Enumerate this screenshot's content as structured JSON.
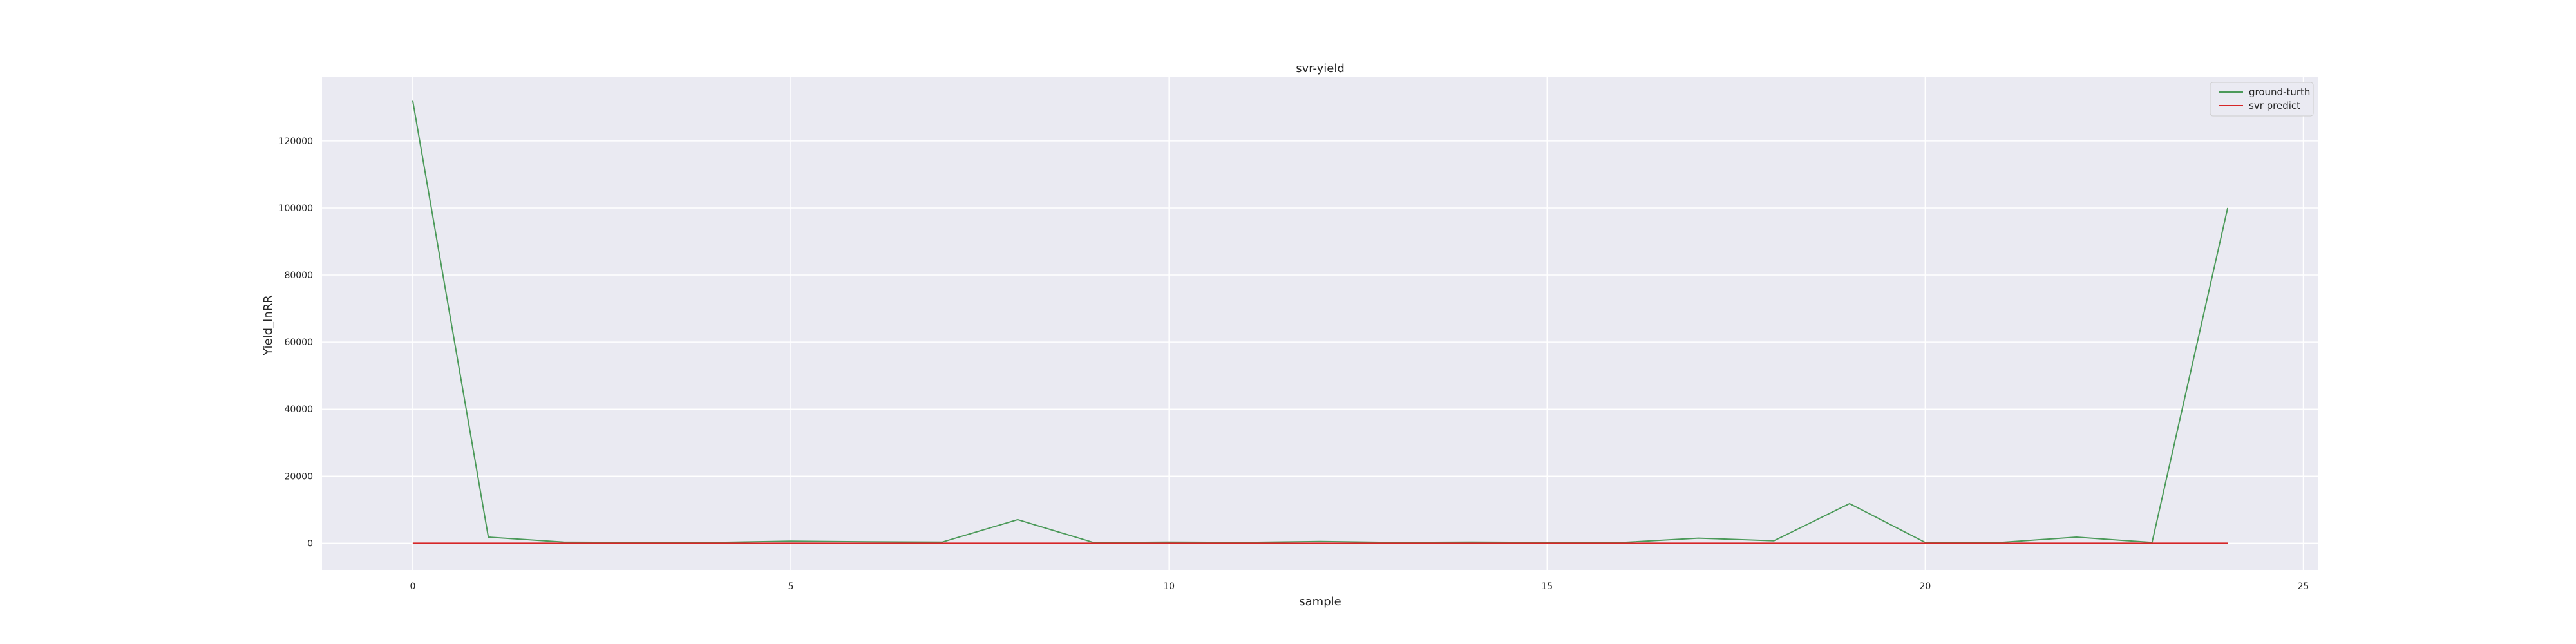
{
  "chart_data": {
    "type": "line",
    "title": "svr-yield",
    "xlabel": "sample",
    "ylabel": "Yield_InRR",
    "xlim": [
      -1.2,
      25.2
    ],
    "ylim": [
      -8000,
      139000
    ],
    "xticks": [
      0,
      5,
      10,
      15,
      20,
      25
    ],
    "yticks": [
      0,
      20000,
      40000,
      60000,
      80000,
      100000,
      120000
    ],
    "grid": true,
    "legend_position": "top-right",
    "x": [
      0,
      1,
      2,
      3,
      4,
      5,
      6,
      7,
      8,
      9,
      10,
      11,
      12,
      13,
      14,
      15,
      16,
      17,
      18,
      19,
      20,
      21,
      22,
      23,
      24
    ],
    "series": [
      {
        "name": "ground-turth",
        "color": "#4c9a5a",
        "values": [
          132000,
          1800,
          300,
          200,
          200,
          600,
          400,
          300,
          7000,
          200,
          300,
          200,
          500,
          200,
          300,
          200,
          200,
          1500,
          700,
          11800,
          200,
          200,
          1800,
          200,
          100000
        ]
      },
      {
        "name": "svr predict",
        "color": "#d62728",
        "values": [
          0,
          0,
          0,
          0,
          0,
          0,
          0,
          0,
          0,
          0,
          0,
          0,
          0,
          0,
          0,
          0,
          0,
          0,
          0,
          0,
          0,
          0,
          0,
          0,
          0
        ]
      }
    ]
  },
  "colors": {
    "plot_background": "#eaeaf2",
    "grid": "#ffffff",
    "text": "#262626"
  }
}
